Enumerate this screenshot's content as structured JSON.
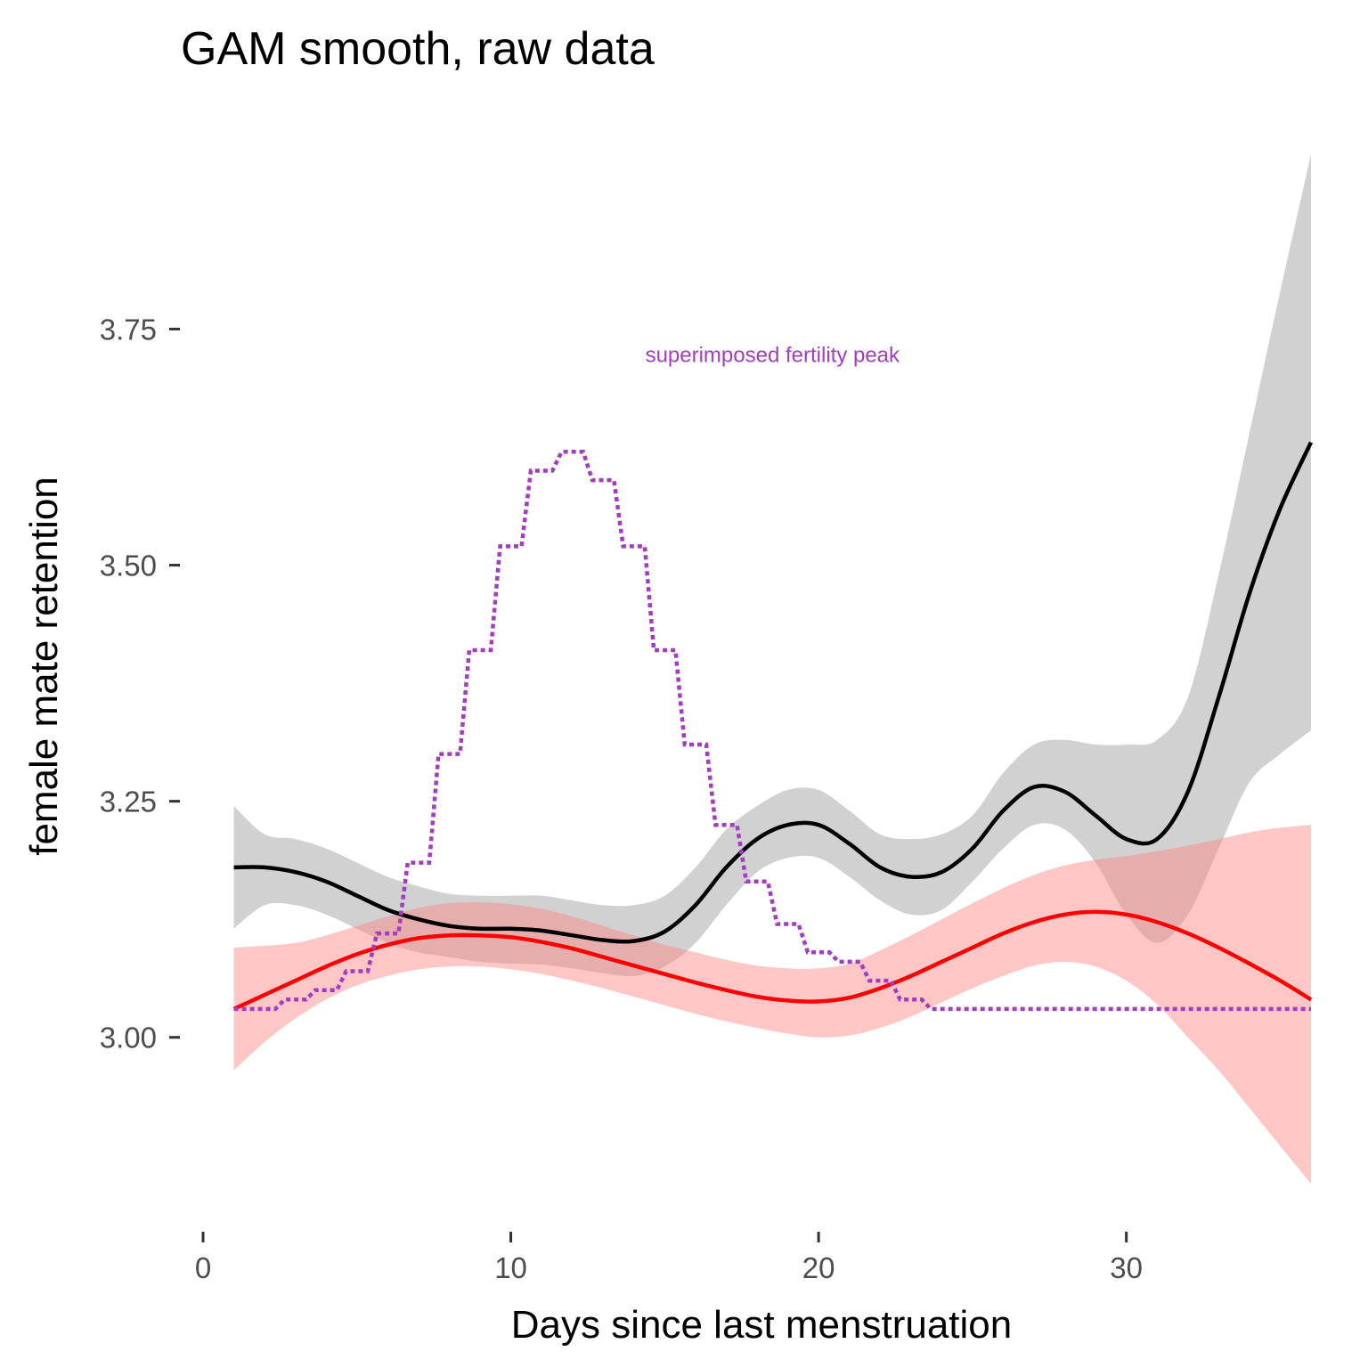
{
  "chart_data": {
    "type": "line",
    "title": "GAM smooth, raw data",
    "xlabel": "Days since last menstruation",
    "ylabel": "female mate retention",
    "xlim": [
      0,
      36
    ],
    "ylim": [
      2.83,
      3.94
    ],
    "x_ticks": [
      0,
      10,
      20,
      30
    ],
    "x_tick_labels": [
      "0",
      "10",
      "20",
      "30"
    ],
    "y_ticks": [
      3.0,
      3.25,
      3.5,
      3.75
    ],
    "y_tick_labels": [
      "3.00",
      "3.25",
      "3.50",
      "3.75"
    ],
    "grid": false,
    "annotation": {
      "text": "superimposed fertility peak",
      "x": 18.5,
      "y": 3.715,
      "color": "#A43CC2"
    },
    "series": [
      {
        "kind": "line_with_ribbon",
        "color": "#000000",
        "fill": "#999999",
        "x": [
          1,
          2,
          3,
          4,
          5,
          6,
          7,
          8,
          9,
          10,
          11,
          12,
          13,
          14,
          15,
          16,
          17,
          18,
          19,
          20,
          21,
          22,
          23,
          24,
          25,
          26,
          27,
          28,
          29,
          30,
          31,
          32,
          33,
          34,
          35,
          36
        ],
        "y": [
          3.18,
          3.18,
          3.175,
          3.165,
          3.15,
          3.135,
          3.125,
          3.118,
          3.115,
          3.115,
          3.113,
          3.108,
          3.103,
          3.102,
          3.112,
          3.14,
          3.18,
          3.21,
          3.225,
          3.225,
          3.205,
          3.18,
          3.17,
          3.175,
          3.2,
          3.24,
          3.265,
          3.26,
          3.235,
          3.21,
          3.21,
          3.26,
          3.36,
          3.47,
          3.56,
          3.63
        ],
        "lower": [
          3.115,
          3.14,
          3.14,
          3.13,
          3.115,
          3.1,
          3.09,
          3.085,
          3.08,
          3.078,
          3.077,
          3.073,
          3.068,
          3.065,
          3.075,
          3.1,
          3.14,
          3.175,
          3.19,
          3.19,
          3.17,
          3.145,
          3.13,
          3.135,
          3.165,
          3.2,
          3.225,
          3.22,
          3.185,
          3.13,
          3.1,
          3.13,
          3.2,
          3.27,
          3.3,
          3.325
        ],
        "upper": [
          3.245,
          3.215,
          3.21,
          3.2,
          3.185,
          3.17,
          3.16,
          3.152,
          3.15,
          3.15,
          3.15,
          3.145,
          3.14,
          3.14,
          3.15,
          3.18,
          3.22,
          3.245,
          3.262,
          3.262,
          3.24,
          3.215,
          3.21,
          3.215,
          3.235,
          3.28,
          3.31,
          3.315,
          3.31,
          3.31,
          3.315,
          3.36,
          3.49,
          3.64,
          3.79,
          3.935
        ]
      },
      {
        "kind": "line_with_ribbon",
        "color": "#FF0000",
        "fill": "#FF8080",
        "x": [
          1,
          2,
          3,
          4,
          5,
          6,
          7,
          8,
          9,
          10,
          11,
          12,
          13,
          14,
          15,
          16,
          17,
          18,
          19,
          20,
          21,
          22,
          23,
          24,
          25,
          26,
          27,
          28,
          29,
          30,
          31,
          32,
          33,
          34,
          35,
          36
        ],
        "y": [
          3.03,
          3.045,
          3.06,
          3.075,
          3.088,
          3.098,
          3.105,
          3.108,
          3.108,
          3.106,
          3.101,
          3.094,
          3.085,
          3.076,
          3.067,
          3.058,
          3.05,
          3.043,
          3.039,
          3.038,
          3.042,
          3.052,
          3.065,
          3.08,
          3.095,
          3.11,
          3.122,
          3.13,
          3.133,
          3.13,
          3.122,
          3.11,
          3.095,
          3.078,
          3.06,
          3.04
        ],
        "lower": [
          2.965,
          2.995,
          3.02,
          3.04,
          3.055,
          3.065,
          3.072,
          3.075,
          3.075,
          3.072,
          3.067,
          3.06,
          3.052,
          3.043,
          3.034,
          3.025,
          3.017,
          3.01,
          3.004,
          3.0,
          3.002,
          3.01,
          3.022,
          3.037,
          3.052,
          3.065,
          3.076,
          3.08,
          3.075,
          3.06,
          3.035,
          3.0,
          2.965,
          2.925,
          2.885,
          2.845
        ],
        "upper": [
          3.095,
          3.097,
          3.1,
          3.108,
          3.118,
          3.128,
          3.137,
          3.142,
          3.143,
          3.141,
          3.136,
          3.128,
          3.118,
          3.108,
          3.098,
          3.09,
          3.082,
          3.076,
          3.073,
          3.073,
          3.078,
          3.092,
          3.108,
          3.125,
          3.142,
          3.158,
          3.172,
          3.182,
          3.188,
          3.192,
          3.197,
          3.203,
          3.21,
          3.217,
          3.222,
          3.225
        ]
      },
      {
        "kind": "step",
        "style": "dotted",
        "color": "#A43CC2",
        "x": [
          1,
          2,
          3,
          4,
          5,
          6,
          7,
          8,
          9,
          10,
          11,
          12,
          13,
          14,
          15,
          16,
          17,
          18,
          19,
          20,
          21,
          22,
          23,
          24,
          25,
          26,
          27,
          28,
          29,
          30,
          31,
          32,
          33,
          34,
          35,
          36
        ],
        "y": [
          3.03,
          3.03,
          3.04,
          3.05,
          3.07,
          3.11,
          3.185,
          3.3,
          3.41,
          3.52,
          3.6,
          3.62,
          3.59,
          3.52,
          3.41,
          3.31,
          3.225,
          3.165,
          3.12,
          3.09,
          3.08,
          3.06,
          3.04,
          3.03,
          3.03,
          3.03,
          3.03,
          3.03,
          3.03,
          3.03,
          3.03,
          3.03,
          3.03,
          3.03,
          3.03,
          3.03
        ]
      }
    ]
  }
}
